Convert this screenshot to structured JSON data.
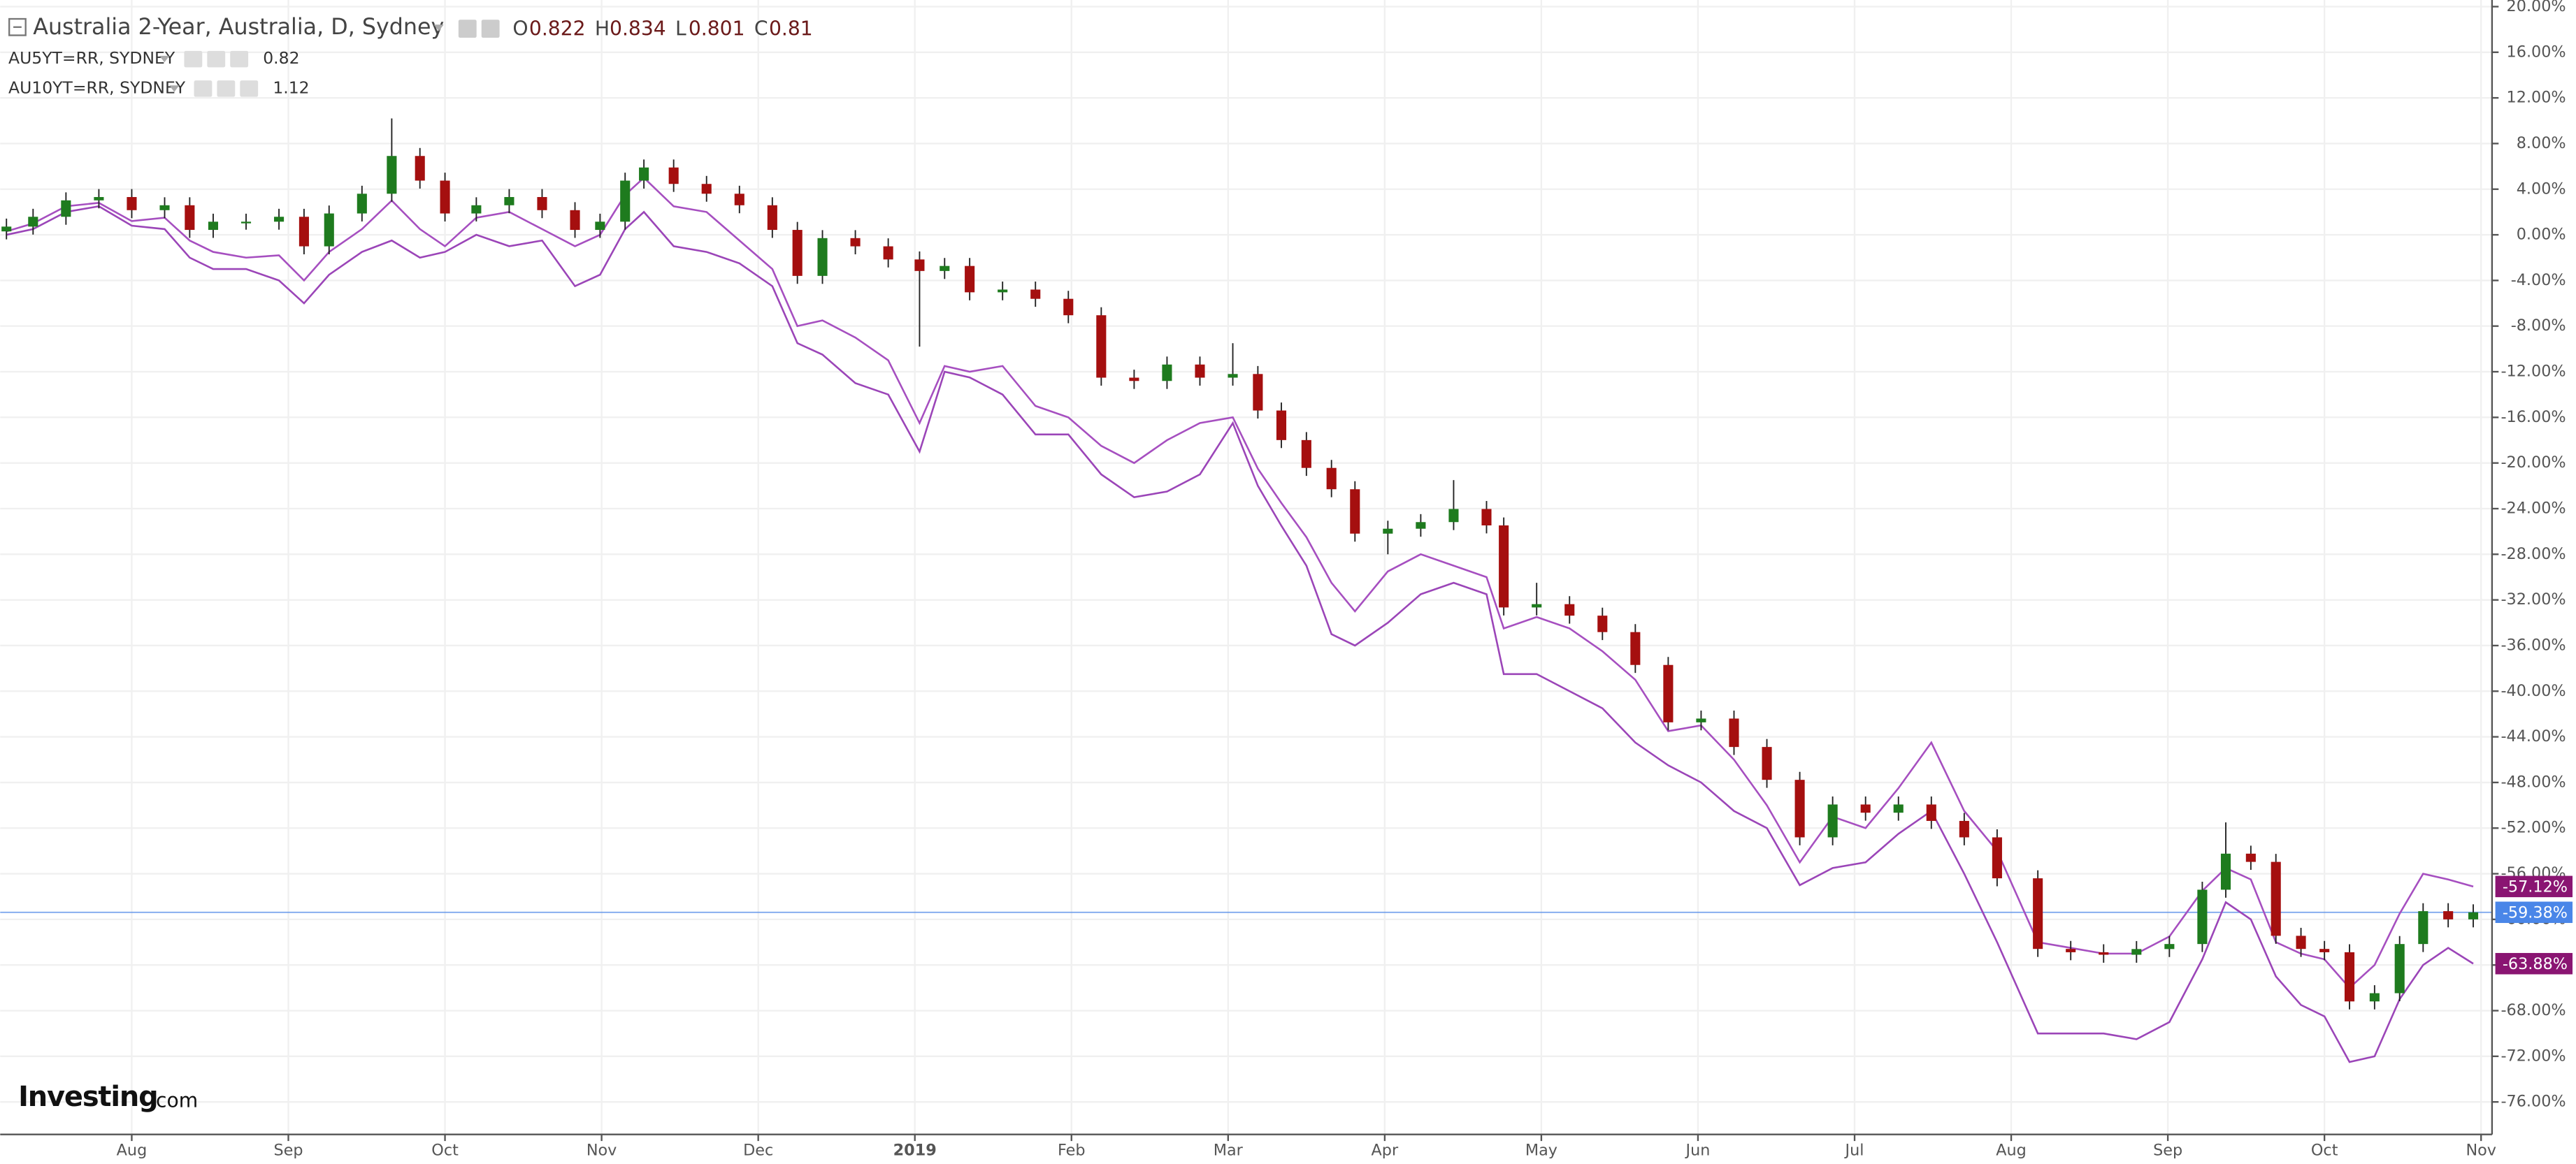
{
  "chart_data": {
    "type": "candlestick",
    "title": "Australia 2-Year, Australia, D, Sydney",
    "ohlc": [
      {
        "key": "O",
        "value": 0.822
      },
      {
        "key": "H",
        "value": 0.834
      },
      {
        "key": "L",
        "value": 0.801
      },
      {
        "key": "C",
        "value": 0.81
      }
    ],
    "up_color": "#1e7b1e",
    "down_color": "#a50f0f",
    "x": [
      0.2,
      0.37,
      0.58,
      0.79,
      1.0,
      1.21,
      1.37,
      1.52,
      1.73,
      1.94,
      2.1,
      2.26,
      2.47,
      2.66,
      2.84,
      3.0,
      3.2,
      3.41,
      3.62,
      3.83,
      3.99,
      4.15,
      4.27,
      4.46,
      4.67,
      4.88,
      5.09,
      5.25,
      5.41,
      5.62,
      5.83,
      6.03,
      6.19,
      6.35,
      6.56,
      6.77,
      6.98,
      7.19,
      7.4,
      7.61,
      7.82,
      8.03,
      8.19,
      8.34,
      8.5,
      8.66,
      8.81,
      9.02,
      9.23,
      9.44,
      9.65,
      9.76,
      9.97,
      10.18,
      10.39,
      10.6,
      10.81,
      11.02,
      11.23,
      11.44,
      11.65,
      11.86,
      12.07,
      12.28,
      12.49,
      12.7,
      12.91,
      13.17,
      13.38,
      13.59,
      13.8,
      14.01,
      14.22,
      14.37,
      14.53,
      14.69,
      14.85,
      15.0,
      15.16,
      15.32,
      15.48,
      15.63,
      15.79,
      15.95
    ],
    "open": [
      0.3,
      0.72,
      1.58,
      3.02,
      3.31,
      2.16,
      2.59,
      0.43,
      1.15,
      1.15,
      1.58,
      -1.01,
      1.87,
      3.6,
      6.91,
      4.75,
      1.87,
      2.59,
      3.31,
      2.16,
      0.43,
      1.15,
      4.75,
      5.9,
      4.46,
      3.6,
      2.59,
      0.43,
      -3.6,
      -0.29,
      -1.01,
      -2.16,
      -3.17,
      -2.73,
      -5.04,
      -4.8,
      -5.61,
      -7.05,
      -12.52,
      -12.81,
      -11.37,
      -12.52,
      -12.2,
      -15.4,
      -17.99,
      -20.43,
      -22.3,
      -26.19,
      -25.76,
      -25.18,
      -24.03,
      -25.47,
      -32.66,
      -32.37,
      -33.38,
      -34.82,
      -37.7,
      -42.73,
      -42.4,
      -44.89,
      -47.77,
      -52.81,
      -49.93,
      -50.65,
      -49.93,
      -51.37,
      -52.81,
      -56.4,
      -62.59,
      -62.88,
      -63.1,
      -62.6,
      -62.16,
      -57.4,
      -54.24,
      -54.96,
      -61.44,
      -62.59,
      -62.88,
      -67.19,
      -66.47,
      -62.16,
      -59.28,
      -60.0
    ],
    "high": [
      1.42,
      2.28,
      3.72,
      4.01,
      4.01,
      3.29,
      3.29,
      1.85,
      1.85,
      2.28,
      2.28,
      2.57,
      4.3,
      10.2,
      7.61,
      5.45,
      3.29,
      4.01,
      4.01,
      2.86,
      1.85,
      5.45,
      6.6,
      6.6,
      5.16,
      4.3,
      3.29,
      1.13,
      0.41,
      0.41,
      -0.31,
      -1.46,
      -2.03,
      -2.03,
      -4.1,
      -4.1,
      -4.91,
      -6.35,
      -11.82,
      -10.67,
      -10.67,
      -9.5,
      -11.5,
      -14.7,
      -17.29,
      -19.73,
      -21.6,
      -25.06,
      -24.48,
      -21.5,
      -23.33,
      -24.77,
      -30.5,
      -31.67,
      -32.68,
      -34.12,
      -37.0,
      -41.7,
      -41.7,
      -44.19,
      -47.07,
      -49.23,
      -49.23,
      -49.23,
      -49.23,
      -50.67,
      -52.11,
      -55.7,
      -61.89,
      -62.18,
      -61.9,
      -61.46,
      -56.7,
      -51.5,
      -53.54,
      -54.26,
      -60.74,
      -61.89,
      -62.18,
      -65.77,
      -61.46,
      -58.58,
      -58.58,
      -58.68
    ],
    "low": [
      -0.4,
      0.02,
      0.88,
      2.32,
      1.46,
      1.46,
      -0.27,
      -0.27,
      0.45,
      0.45,
      -1.71,
      -1.71,
      1.17,
      2.9,
      4.05,
      1.17,
      1.17,
      1.89,
      1.46,
      -0.27,
      -0.27,
      0.45,
      4.05,
      3.76,
      2.9,
      1.89,
      -0.27,
      -4.3,
      -4.3,
      -1.71,
      -2.86,
      -9.8,
      -3.87,
      -5.74,
      -5.74,
      -6.31,
      -7.75,
      -13.22,
      -13.51,
      -13.51,
      -13.22,
      -13.22,
      -16.1,
      -18.69,
      -21.13,
      -23.0,
      -26.89,
      -28.0,
      -26.46,
      -25.88,
      -26.17,
      -33.36,
      -33.36,
      -34.08,
      -35.52,
      -38.4,
      -43.43,
      -43.43,
      -45.59,
      -48.47,
      -53.51,
      -53.51,
      -51.35,
      -51.35,
      -52.07,
      -53.51,
      -57.1,
      -63.29,
      -63.58,
      -63.8,
      -63.8,
      -63.3,
      -62.86,
      -58.1,
      -55.66,
      -62.14,
      -63.29,
      -63.58,
      -67.89,
      -67.89,
      -67.17,
      -62.86,
      -60.7,
      -60.7
    ],
    "close": [
      0.72,
      1.58,
      3.02,
      3.31,
      2.16,
      2.59,
      0.43,
      1.15,
      1.15,
      1.58,
      -1.01,
      1.87,
      3.6,
      6.91,
      4.75,
      1.87,
      2.59,
      3.31,
      2.16,
      0.43,
      1.15,
      4.75,
      5.9,
      4.46,
      3.6,
      2.59,
      0.43,
      -3.6,
      -0.29,
      -1.01,
      -2.16,
      -3.17,
      -2.73,
      -5.04,
      -4.8,
      -5.61,
      -7.05,
      -12.52,
      -12.81,
      -11.37,
      -12.52,
      -12.2,
      -15.4,
      -17.99,
      -20.43,
      -22.3,
      -26.19,
      -25.76,
      -25.18,
      -24.03,
      -25.47,
      -32.66,
      -32.37,
      -33.38,
      -34.82,
      -37.7,
      -42.73,
      -42.4,
      -44.89,
      -47.77,
      -52.81,
      -49.93,
      -50.65,
      -49.93,
      -51.37,
      -52.81,
      -56.4,
      -62.59,
      -62.88,
      -63.1,
      -62.6,
      -62.16,
      -57.4,
      -54.24,
      -54.96,
      -61.44,
      -62.59,
      -62.88,
      -67.19,
      -66.47,
      -62.16,
      -59.28,
      -60.0,
      -59.38
    ],
    "series": [
      {
        "name": "AU5YT=RR, SYDNEY",
        "legend_value": 0.82,
        "color": "#a64fc0",
        "values": [
          0.3,
          1.0,
          2.5,
          2.8,
          1.2,
          1.5,
          -0.5,
          -1.5,
          -2.0,
          -1.8,
          -4.0,
          -1.5,
          0.5,
          3.0,
          0.5,
          -1.0,
          1.5,
          2.0,
          0.5,
          -1.0,
          0.0,
          3.5,
          5.0,
          2.5,
          2.0,
          -0.5,
          -3.0,
          -8.0,
          -7.5,
          -9.0,
          -11.0,
          -16.5,
          -11.5,
          -12.0,
          -11.5,
          -15.0,
          -16.0,
          -18.5,
          -20.0,
          -18.0,
          -16.5,
          -16.0,
          -20.5,
          -23.5,
          -26.5,
          -30.5,
          -33.0,
          -29.5,
          -28.0,
          -29.0,
          -30.0,
          -34.5,
          -33.5,
          -34.5,
          -36.5,
          -39.0,
          -43.5,
          -43.0,
          -46.0,
          -50.0,
          -55.0,
          -51.0,
          -52.0,
          -48.5,
          -44.5,
          -50.5,
          -54.0,
          -62.0,
          -62.5,
          -63.0,
          -63.0,
          -61.5,
          -57.5,
          -55.5,
          -56.5,
          -62.0,
          -63.0,
          -63.5,
          -66.0,
          -64.0,
          -59.5,
          -56.0,
          -56.5,
          -57.12
        ]
      },
      {
        "name": "AU10YT=RR, SYDNEY",
        "legend_value": 1.12,
        "color": "#9b45b8",
        "values": [
          0.0,
          0.5,
          2.0,
          2.5,
          0.8,
          0.5,
          -2.0,
          -3.0,
          -3.0,
          -4.0,
          -6.0,
          -3.5,
          -1.5,
          -0.5,
          -2.0,
          -1.5,
          0.0,
          -1.0,
          -0.5,
          -4.5,
          -3.5,
          0.5,
          2.0,
          -1.0,
          -1.5,
          -2.5,
          -4.5,
          -9.5,
          -10.5,
          -13.0,
          -14.0,
          -19.0,
          -12.0,
          -12.5,
          -14.0,
          -17.5,
          -17.5,
          -21.0,
          -23.0,
          -22.5,
          -21.0,
          -16.5,
          -22.0,
          -25.5,
          -29.0,
          -35.0,
          -36.0,
          -34.0,
          -31.5,
          -30.5,
          -31.5,
          -38.5,
          -38.5,
          -40.0,
          -41.5,
          -44.5,
          -46.5,
          -48.0,
          -50.5,
          -52.0,
          -57.0,
          -55.5,
          -55.0,
          -52.5,
          -50.5,
          -56.0,
          -62.0,
          -70.0,
          -70.0,
          -70.0,
          -70.5,
          -69.0,
          -63.5,
          -58.5,
          -60.0,
          -65.0,
          -67.5,
          -68.5,
          -72.5,
          -72.0,
          -67.0,
          -64.0,
          -62.5,
          -63.88
        ]
      }
    ],
    "price_labels": [
      {
        "value": -57.12,
        "label": "-57.12%",
        "color": "#8a1572",
        "line": false
      },
      {
        "value": -59.38,
        "label": "-59.38%",
        "color": "#4a86e8",
        "line": true
      },
      {
        "value": -63.88,
        "label": "-63.88%",
        "color": "#8a1572",
        "line": false
      }
    ],
    "xlim": [
      0.16,
      16.07
    ],
    "ylim": [
      -78.85,
      20.58
    ],
    "xticks": [
      {
        "value": 1,
        "label": "Aug"
      },
      {
        "value": 2,
        "label": "Sep"
      },
      {
        "value": 3,
        "label": "Oct"
      },
      {
        "value": 4,
        "label": "Nov"
      },
      {
        "value": 5,
        "label": "Dec"
      },
      {
        "value": 6,
        "label": "2019"
      },
      {
        "value": 7,
        "label": "Feb"
      },
      {
        "value": 8,
        "label": "Mar"
      },
      {
        "value": 9,
        "label": "Apr"
      },
      {
        "value": 10,
        "label": "May"
      },
      {
        "value": 11,
        "label": "Jun"
      },
      {
        "value": 12,
        "label": "Jul"
      },
      {
        "value": 13,
        "label": "Aug"
      },
      {
        "value": 14,
        "label": "Sep"
      },
      {
        "value": 15,
        "label": "Oct"
      },
      {
        "value": 16,
        "label": "Nov"
      }
    ],
    "yticks": [
      {
        "value": 20,
        "label": "20.00%"
      },
      {
        "value": 16,
        "label": "16.00%"
      },
      {
        "value": 12,
        "label": "12.00%"
      },
      {
        "value": 8,
        "label": "8.00%"
      },
      {
        "value": 4,
        "label": "4.00%"
      },
      {
        "value": 0,
        "label": "0.00%"
      },
      {
        "value": -4,
        "label": "-4.00%"
      },
      {
        "value": -8,
        "label": "-8.00%"
      },
      {
        "value": -12,
        "label": "-12.00%"
      },
      {
        "value": -16,
        "label": "-16.00%"
      },
      {
        "value": -20,
        "label": "-20.00%"
      },
      {
        "value": -24,
        "label": "-24.00%"
      },
      {
        "value": -28,
        "label": "-28.00%"
      },
      {
        "value": -32,
        "label": "-32.00%"
      },
      {
        "value": -36,
        "label": "-36.00%"
      },
      {
        "value": -40,
        "label": "-40.00%"
      },
      {
        "value": -44,
        "label": "-44.00%"
      },
      {
        "value": -48,
        "label": "-48.00%"
      },
      {
        "value": -52,
        "label": "-52.00%"
      },
      {
        "value": -56,
        "label": "-56.00%"
      },
      {
        "value": -60,
        "label": "-60.00%"
      },
      {
        "value": -64,
        "label": "-64.00%"
      },
      {
        "value": -68,
        "label": "-68.00%"
      },
      {
        "value": -72,
        "label": "-72.00%"
      },
      {
        "value": -76,
        "label": "-76.00%"
      }
    ],
    "grid": true,
    "logo": {
      "name": "Investing",
      "suffix": ".com"
    }
  }
}
